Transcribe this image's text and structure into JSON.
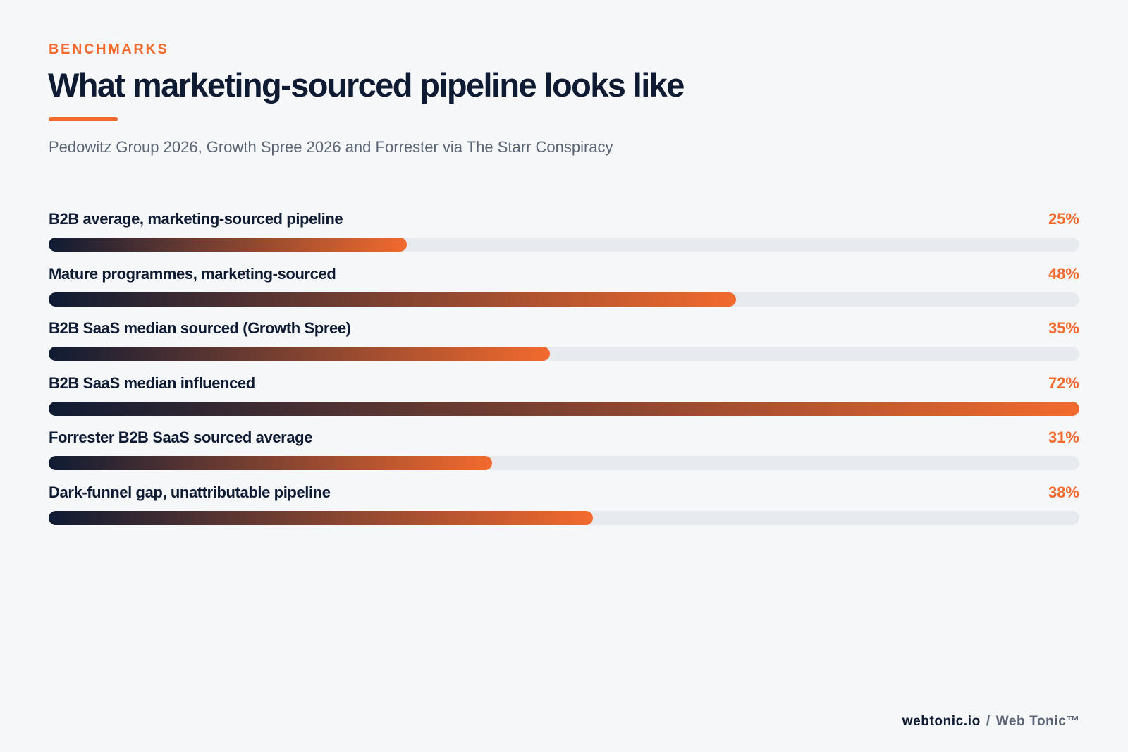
{
  "header": {
    "eyebrow": "BENCHMARKS",
    "title": "What marketing-sourced pipeline looks like",
    "subtitle": "Pedowitz Group 2026, Growth Spree 2026 and Forrester via The Starr Conspiracy"
  },
  "chart_data": {
    "type": "bar",
    "orientation": "horizontal",
    "title": "What marketing-sourced pipeline looks like",
    "subtitle": "Pedowitz Group 2026, Growth Spree 2026 and Forrester via The Starr Conspiracy",
    "xlim": [
      0,
      72
    ],
    "grid": false,
    "legend": "none",
    "categories": [
      "B2B average, marketing-sourced pipeline",
      "Mature programmes, marketing-sourced",
      "B2B SaaS median sourced (Growth Spree)",
      "B2B SaaS median influenced",
      "Forrester B2B SaaS sourced average",
      "Dark-funnel gap, unattributable pipeline"
    ],
    "values": [
      25,
      48,
      35,
      72,
      31,
      38
    ],
    "value_labels": [
      "25%",
      "48%",
      "35%",
      "72%",
      "31%",
      "38%"
    ],
    "colors": {
      "bar_start": "#0f1b33",
      "bar_end": "#f26a2e",
      "track": "#e7eaef",
      "accent": "#f26a2e"
    }
  },
  "footer": {
    "site": "webtonic.io",
    "separator": "/",
    "brand": "Web Tonic™"
  }
}
